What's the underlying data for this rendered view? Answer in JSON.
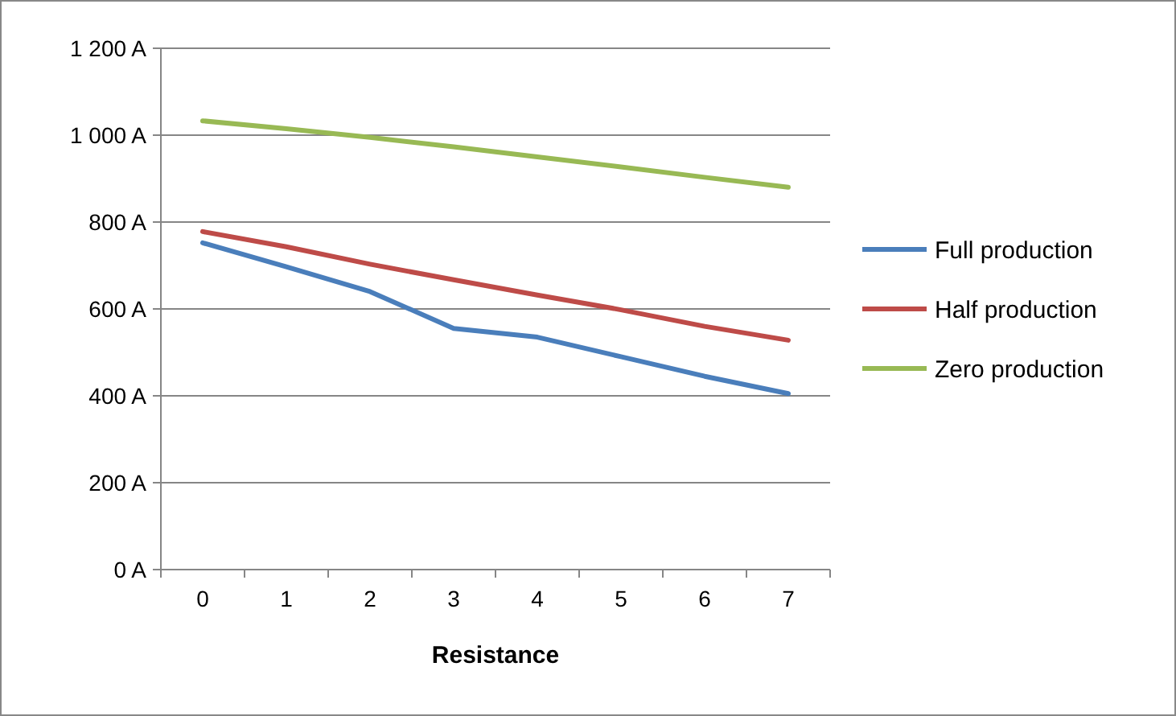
{
  "chart_data": {
    "type": "line",
    "xlabel": "Resistance",
    "categories": [
      "0",
      "1",
      "2",
      "3",
      "4",
      "5",
      "6",
      "7"
    ],
    "series": [
      {
        "name": "Full production",
        "color": "#4a7ebb",
        "values": [
          752,
          697,
          640,
          555,
          535,
          490,
          445,
          405
        ]
      },
      {
        "name": "Half production",
        "color": "#be4b48",
        "values": [
          778,
          743,
          703,
          667,
          632,
          598,
          560,
          528
        ]
      },
      {
        "name": "Zero production",
        "color": "#98b954",
        "values": [
          1033,
          1015,
          995,
          973,
          950,
          927,
          903,
          880
        ]
      }
    ],
    "ylim": [
      0,
      1200
    ],
    "yticks": [
      {
        "value": 0,
        "label": "0 A"
      },
      {
        "value": 200,
        "label": "200 A"
      },
      {
        "value": 400,
        "label": "400 A"
      },
      {
        "value": 600,
        "label": "600 A"
      },
      {
        "value": 800,
        "label": "800 A"
      },
      {
        "value": 1000,
        "label": "1 000 A"
      },
      {
        "value": 1200,
        "label": "1 200 A"
      }
    ],
    "grid": "y",
    "legend": "right",
    "marker": "none",
    "line_style": "solid"
  }
}
